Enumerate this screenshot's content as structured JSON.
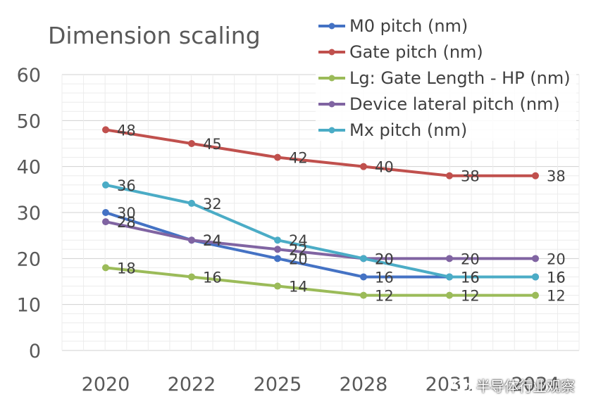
{
  "chart_data": {
    "type": "line",
    "title": "Dimension scaling",
    "categories": [
      "2020",
      "2022",
      "2025",
      "2028",
      "2031",
      "2034"
    ],
    "ylim": [
      0,
      60
    ],
    "yticks": [
      0,
      10,
      20,
      30,
      40,
      50,
      60
    ],
    "grid": true,
    "legend_position": "top-right",
    "series": [
      {
        "name": "M0 pitch (nm)",
        "color": "#4472C4",
        "values": [
          30,
          24,
          20,
          16,
          16,
          16
        ],
        "labels": [
          "30",
          "24",
          "20",
          "16",
          "16",
          "16"
        ]
      },
      {
        "name": "Gate pitch (nm)",
        "color": "#C0504D",
        "values": [
          48,
          45,
          42,
          40,
          38,
          38
        ],
        "labels": [
          "48",
          "45",
          "42",
          "40",
          "38",
          "38"
        ]
      },
      {
        "name": "Lg: Gate Length - HP (nm)",
        "color": "#9BBB59",
        "values": [
          18,
          16,
          14,
          12,
          12,
          12
        ],
        "labels": [
          "18",
          "16",
          "14",
          "12",
          "12",
          "12"
        ]
      },
      {
        "name": "Device lateral pitch (nm)",
        "color": "#8064A2",
        "values": [
          28,
          24,
          22,
          20,
          20,
          20
        ],
        "labels": [
          "28",
          "24",
          "22",
          "20",
          "20",
          "20"
        ]
      },
      {
        "name": "Mx pitch (nm)",
        "color": "#4BACC6",
        "values": [
          36,
          32,
          24,
          20,
          16,
          16
        ],
        "labels": [
          "36",
          "32",
          "24",
          "20",
          "16",
          "16"
        ]
      }
    ]
  },
  "watermark": {
    "text": "半导体行业观察",
    "icon": "wechat-icon"
  }
}
